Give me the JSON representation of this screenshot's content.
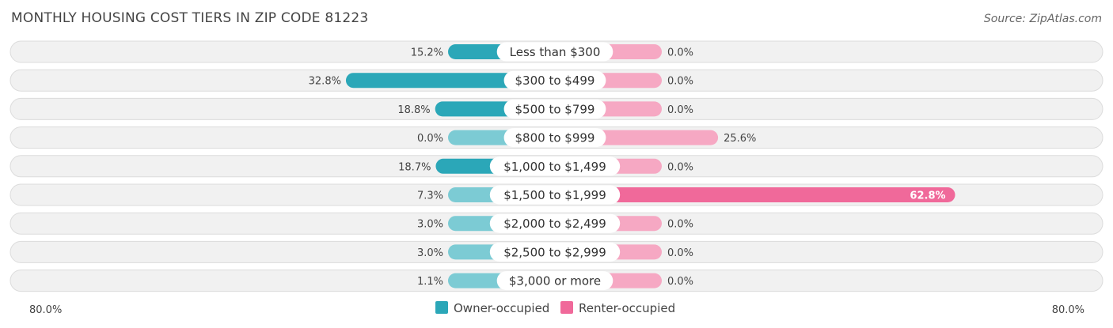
{
  "title": "MONTHLY HOUSING COST TIERS IN ZIP CODE 81223",
  "source": "Source: ZipAtlas.com",
  "colors": {
    "owner": "#2ba7b8",
    "owner_light": "#7ccbd4",
    "renter": "#f0699a",
    "renter_light": "#f6a8c3",
    "row_bg": "#f1f1f1",
    "row_border": "#dcdcdc"
  },
  "chart_data": {
    "type": "bar",
    "orientation": "diverging-horizontal",
    "categories": [
      "Less than $300",
      "$300 to $499",
      "$500 to $799",
      "$800 to $999",
      "$1,000 to $1,499",
      "$1,500 to $1,999",
      "$2,000 to $2,499",
      "$2,500 to $2,999",
      "$3,000 or more"
    ],
    "series": [
      {
        "name": "Owner-occupied",
        "values": [
          15.2,
          32.8,
          18.8,
          0.0,
          18.7,
          7.3,
          3.0,
          3.0,
          1.1
        ],
        "labels": [
          "15.2%",
          "32.8%",
          "18.8%",
          "0.0%",
          "18.7%",
          "7.3%",
          "3.0%",
          "3.0%",
          "1.1%"
        ]
      },
      {
        "name": "Renter-occupied",
        "values": [
          0.0,
          0.0,
          0.0,
          25.6,
          0.0,
          62.8,
          0.0,
          0.0,
          0.0
        ],
        "labels": [
          "0.0%",
          "0.0%",
          "0.0%",
          "25.6%",
          "0.0%",
          "62.8%",
          "0.0%",
          "0.0%",
          "0.0%"
        ]
      }
    ],
    "xlim": [
      -80,
      80
    ],
    "axis_left_label": "80.0%",
    "axis_right_label": "80.0%",
    "legend": "bottom-center"
  }
}
